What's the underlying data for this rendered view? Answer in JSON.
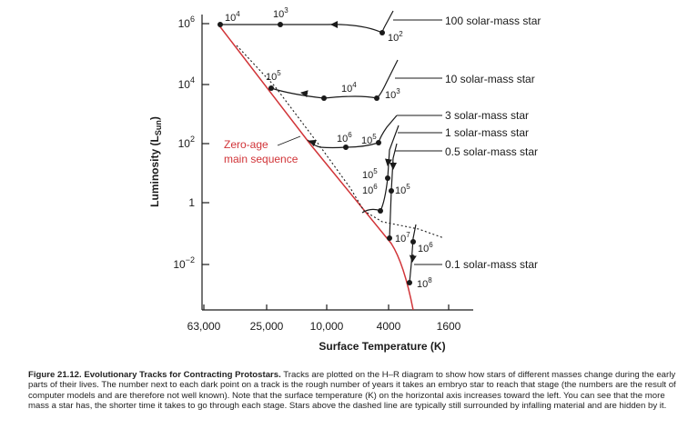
{
  "chart_data": {
    "type": "scatter",
    "title": "",
    "xlabel": "Surface Temperature (K)",
    "ylabel": "Luminosity (L",
    "ylabel_sub": "Sun",
    "ylabel_close": ")",
    "x_ticks": [
      "63,000",
      "25,000",
      "10,000",
      "4000",
      "1600"
    ],
    "y_ticks": [
      {
        "base": "10",
        "exp": "6"
      },
      {
        "base": "10",
        "exp": "4"
      },
      {
        "base": "10",
        "exp": "2"
      },
      {
        "base": "1",
        "exp": ""
      },
      {
        "base": "10",
        "exp": "−2"
      }
    ],
    "zams_label": [
      "Zero-age",
      "main sequence"
    ],
    "zams_color": "#d13438",
    "series": [
      {
        "name": "100 solar-mass star",
        "points": [
          {
            "label": "10",
            "exp": "2"
          },
          {
            "label": "10",
            "exp": "3"
          },
          {
            "label": "10",
            "exp": "4"
          }
        ]
      },
      {
        "name": "10 solar-mass star",
        "points": [
          {
            "label": "10",
            "exp": "3"
          },
          {
            "label": "10",
            "exp": "4"
          },
          {
            "label": "10",
            "exp": "5"
          }
        ]
      },
      {
        "name": "3 solar-mass star",
        "points": [
          {
            "label": "10",
            "exp": "5"
          },
          {
            "label": "10",
            "exp": "6"
          }
        ]
      },
      {
        "name": "1 solar-mass star",
        "points": [
          {
            "label": "10",
            "exp": "5"
          },
          {
            "label": "10",
            "exp": "6"
          }
        ]
      },
      {
        "name": "0.5 solar-mass star",
        "points": [
          {
            "label": "10",
            "exp": "5"
          },
          {
            "label": "10",
            "exp": "7"
          }
        ]
      },
      {
        "name": "0.1 solar-mass star",
        "points": [
          {
            "label": "10",
            "exp": "6"
          },
          {
            "label": "10",
            "exp": "8"
          }
        ]
      }
    ]
  },
  "caption": {
    "figure_label": "Figure 21.12. Evolutionary Tracks for Contracting Protostars.",
    "text": "Tracks are plotted on the H–R diagram to show how stars of different masses change during the early parts of their lives. The number next to each dark point on a track is the rough number of years it takes an embryo star to reach that stage (the numbers are the result of computer models and are therefore not well known). Note that the surface temperature (K) on the horizontal axis increases toward the left. You can see that the more mass a star has, the shorter time it takes to go through each stage. Stars above the dashed line are typically still surrounded by infalling material and are hidden by it."
  }
}
